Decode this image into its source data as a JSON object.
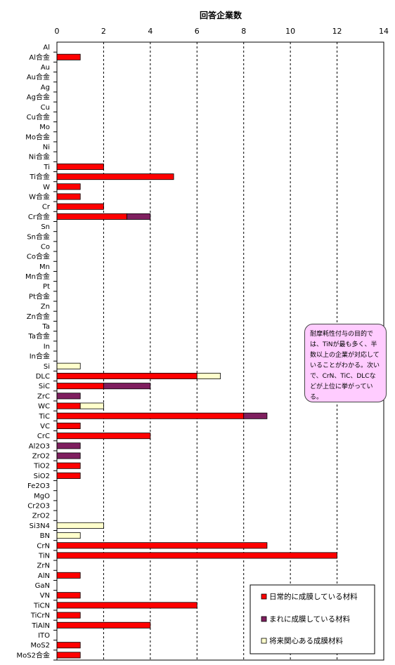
{
  "chart_data": {
    "type": "bar",
    "orientation": "horizontal",
    "stacked": true,
    "title": "回答企業数",
    "xlim": [
      0,
      14
    ],
    "xticks": [
      0,
      2,
      4,
      6,
      8,
      10,
      12,
      14
    ],
    "grid": "vertical dashed",
    "legend_position": "bottom-right",
    "categories": [
      "Al",
      "Al合金",
      "Au",
      "Au合金",
      "Ag",
      "Ag合金",
      "Cu",
      "Cu合金",
      "Mo",
      "Mo合金",
      "Ni",
      "Ni合金",
      "Ti",
      "Ti合金",
      "W",
      "W合金",
      "Cr",
      "Cr合金",
      "Sn",
      "Sn合金",
      "Co",
      "Co合金",
      "Mn",
      "Mn合金",
      "Pt",
      "Pt合金",
      "Zn",
      "Zn合金",
      "Ta",
      "Ta合金",
      "In",
      "In合金",
      "Si",
      "DLC",
      "SiC",
      "ZrC",
      "WC",
      "TiC",
      "VC",
      "CrC",
      "Al2O3",
      "ZrO2",
      "TiO2",
      "SiO2",
      "Fe2O3",
      "MgO",
      "Cr2O3",
      "ZrO2",
      "Si3N4",
      "BN",
      "CrN",
      "TiN",
      "ZrN",
      "AlN",
      "GaN",
      "VN",
      "TiCN",
      "TiCrN",
      "TiAlN",
      "ITO",
      "MoS2",
      "MoS2合金"
    ],
    "series": [
      {
        "name": "日常的に成膜している材料",
        "color": "#ff0000",
        "values": [
          0,
          1,
          0,
          0,
          0,
          0,
          0,
          0,
          0,
          0,
          0,
          0,
          2,
          5,
          1,
          1,
          2,
          3,
          0,
          0,
          0,
          0,
          0,
          0,
          0,
          0,
          0,
          0,
          0,
          0,
          0,
          0,
          0,
          6,
          2,
          0,
          1,
          8,
          1,
          4,
          0,
          0,
          1,
          1,
          0,
          0,
          0,
          0,
          0,
          0,
          9,
          12,
          0,
          1,
          0,
          1,
          6,
          1,
          4,
          0,
          1,
          1
        ]
      },
      {
        "name": "まれに成膜している材料",
        "color": "#7f1f5f",
        "values": [
          0,
          0,
          0,
          0,
          0,
          0,
          0,
          0,
          0,
          0,
          0,
          0,
          0,
          0,
          0,
          0,
          0,
          1,
          0,
          0,
          0,
          0,
          0,
          0,
          0,
          0,
          0,
          0,
          0,
          0,
          0,
          0,
          0,
          0,
          2,
          1,
          0,
          1,
          0,
          0,
          1,
          1,
          0,
          0,
          0,
          0,
          0,
          0,
          0,
          0,
          0,
          0,
          0,
          0,
          0,
          0,
          0,
          0,
          0,
          0,
          0,
          0
        ]
      },
      {
        "name": "将来関心ある成膜材料",
        "color": "#ffffcc",
        "values": [
          0,
          0,
          0,
          0,
          0,
          0,
          0,
          0,
          0,
          0,
          0,
          0,
          0,
          0,
          0,
          0,
          0,
          0,
          0,
          0,
          0,
          0,
          0,
          0,
          0,
          0,
          0,
          0,
          0,
          0,
          0,
          0,
          1,
          1,
          0,
          0,
          1,
          0,
          0,
          0,
          0,
          0,
          0,
          0,
          0,
          0,
          0,
          0,
          2,
          1,
          0,
          0,
          0,
          0,
          0,
          0,
          0,
          0,
          0,
          0,
          0,
          0
        ]
      }
    ]
  },
  "annotation": "耐摩耗性付与の目的では、TiNが最も多く、半数以上の企業が対応していることがわかる。次いで、CrN、TiC、DLCなどが上位に挙がっている。"
}
